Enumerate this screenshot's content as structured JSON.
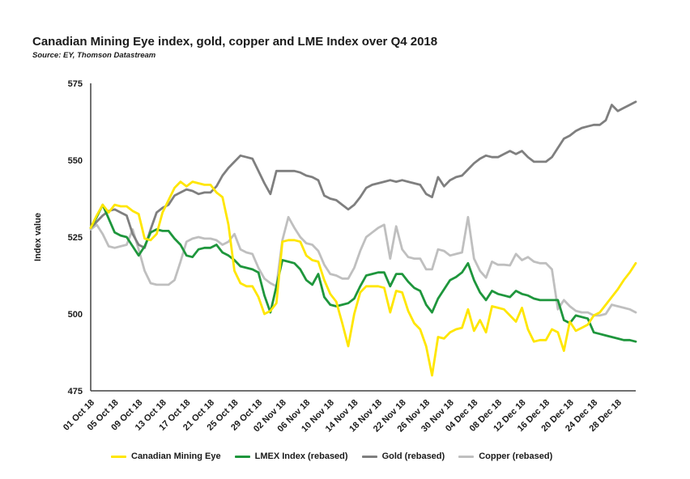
{
  "title": "Canadian Mining Eye index, gold, copper and LME Index over Q4 2018",
  "source": "Source: EY, Thomson Datastream",
  "colors": {
    "axis": "#404040",
    "text": "#1a1a1a",
    "background": "#ffffff"
  },
  "chart_data": {
    "type": "line",
    "title": "Canadian Mining Eye index, gold, copper and LME Index over Q4 2018",
    "subtitle": "Source: EY, Thomson Datastream",
    "xlabel": "",
    "ylabel": "Index value",
    "ylim": [
      475,
      575
    ],
    "y_ticks": [
      575,
      550,
      525,
      500,
      475
    ],
    "grid": false,
    "legend_position": "bottom",
    "x_total_days": 92,
    "x_tick_interval_days": 4,
    "x_tick_labels": [
      "01 Oct 18",
      "05 Oct 18",
      "09 Oct 18",
      "13 Oct 18",
      "17 Oct 18",
      "21 Oct 18",
      "25 Oct 18",
      "29 Oct 18",
      "02 Nov 18",
      "06 Nov 18",
      "10 Nov 18",
      "14 Nov 18",
      "18 Nov 18",
      "22 Nov 18",
      "26 Nov 18",
      "30 Nov 18",
      "04 Dec 18",
      "08 Dec 18",
      "12 Dec 18",
      "16 Dec 18",
      "20 Dec 18",
      "24 Dec 18",
      "28 Dec 18"
    ],
    "series": [
      {
        "name": "Canadian Mining Eye",
        "color": "#FFE600",
        "values": [
          528,
          532,
          535.5,
          533,
          535.5,
          535,
          535,
          533.5,
          532.5,
          524.5,
          524,
          526,
          533,
          537,
          541,
          543,
          541.5,
          543,
          542.5,
          542,
          542,
          539.5,
          538,
          529,
          514,
          510,
          509,
          509,
          505.5,
          500,
          501,
          503.5,
          523.5,
          524,
          524,
          523.5,
          519,
          517.5,
          517,
          511,
          506.5,
          504,
          497,
          489.5,
          500,
          507,
          509,
          509,
          509,
          508.5,
          500.5,
          507.5,
          507,
          501,
          497,
          495,
          489.5,
          480,
          492.5,
          492,
          494,
          495,
          495.5,
          501.5,
          494.5,
          498,
          494,
          502.5,
          502,
          501.5,
          499.5,
          497.5,
          502,
          495,
          491,
          491.5,
          491.5,
          495,
          494,
          488,
          497.5,
          494.5,
          495.5,
          496.5,
          499.5,
          500.5,
          503,
          505.5,
          508,
          511,
          513.5,
          516.5
        ]
      },
      {
        "name": "LMEX Index (rebased)",
        "color": "#1E963C",
        "values": [
          528,
          531.5,
          535.5,
          531,
          526.5,
          525.5,
          525,
          522,
          519,
          522,
          526.5,
          527.5,
          527,
          527,
          524.5,
          522.5,
          519,
          518.5,
          521,
          521.5,
          521.5,
          522.5,
          520,
          519,
          517.5,
          515.5,
          515,
          514.5,
          513.5,
          506,
          500.5,
          509,
          517.5,
          517,
          516.5,
          514.5,
          511,
          509.5,
          513,
          505.5,
          503,
          502.5,
          503,
          503.5,
          505,
          509,
          512.5,
          513,
          513.5,
          513.5,
          509,
          513,
          513,
          510.5,
          508.5,
          507.5,
          503,
          500.5,
          505,
          508,
          511,
          512,
          513.5,
          516.5,
          511,
          507,
          504.5,
          507.5,
          506.5,
          506,
          505.5,
          507.5,
          506.5,
          506,
          505,
          504.5,
          504.5,
          504.5,
          504.5,
          498,
          497,
          499.5,
          499,
          498.5,
          494,
          493.5,
          493,
          492.5,
          492,
          491.5,
          491.5,
          491
        ]
      },
      {
        "name": "Gold (rebased)",
        "color": "#7F7F7F",
        "values": [
          528,
          530,
          532,
          533.5,
          534,
          533,
          532,
          526,
          522.5,
          521.5,
          527.5,
          533,
          534.5,
          535.5,
          538.5,
          539.5,
          540.5,
          540,
          539,
          539.5,
          539.5,
          541.5,
          545,
          547.5,
          549.5,
          551.5,
          551,
          550.5,
          546.5,
          542.5,
          539,
          546.5,
          546.5,
          546.5,
          546.5,
          546,
          545,
          544.5,
          543.5,
          538.5,
          537.5,
          537,
          535.5,
          534,
          535.5,
          538,
          541,
          542,
          542.5,
          543,
          543.5,
          543,
          543.5,
          543,
          542.5,
          542,
          539,
          538,
          544.5,
          541.5,
          543.5,
          544.5,
          545,
          547,
          549,
          550.5,
          551.5,
          551,
          551,
          552,
          553,
          552,
          553,
          551,
          549.5,
          549.5,
          549.5,
          551,
          554,
          557,
          558,
          559.5,
          560.5,
          561,
          561.5,
          561.5,
          563,
          568,
          566,
          567,
          568,
          569
        ]
      },
      {
        "name": "Copper (rebased)",
        "color": "#BFBFBF",
        "values": [
          527.5,
          529,
          526,
          522,
          521.5,
          522,
          522.5,
          527.5,
          521,
          514,
          510,
          509.5,
          509.5,
          509.5,
          511,
          517,
          523.5,
          524.5,
          525,
          524.5,
          524.5,
          524,
          522.5,
          523.5,
          526,
          521,
          520,
          519.5,
          515,
          511.5,
          510,
          509,
          524,
          531.5,
          528,
          525,
          523,
          522.5,
          520.5,
          516,
          513,
          512.5,
          511.5,
          511.5,
          515,
          520.5,
          525,
          526.5,
          528,
          529,
          518,
          528.5,
          521,
          518.5,
          518,
          518,
          514.5,
          514.5,
          521,
          520.5,
          519,
          519.5,
          520,
          531.5,
          518,
          514,
          511.8,
          517,
          516,
          516,
          515.8,
          519.5,
          517.5,
          518.5,
          517,
          516.5,
          516.5,
          514.5,
          501.5,
          504.5,
          502.5,
          501,
          500.5,
          500.5,
          499.5,
          499.5,
          500,
          503,
          502.5,
          502,
          501.5,
          500.5
        ]
      }
    ]
  }
}
